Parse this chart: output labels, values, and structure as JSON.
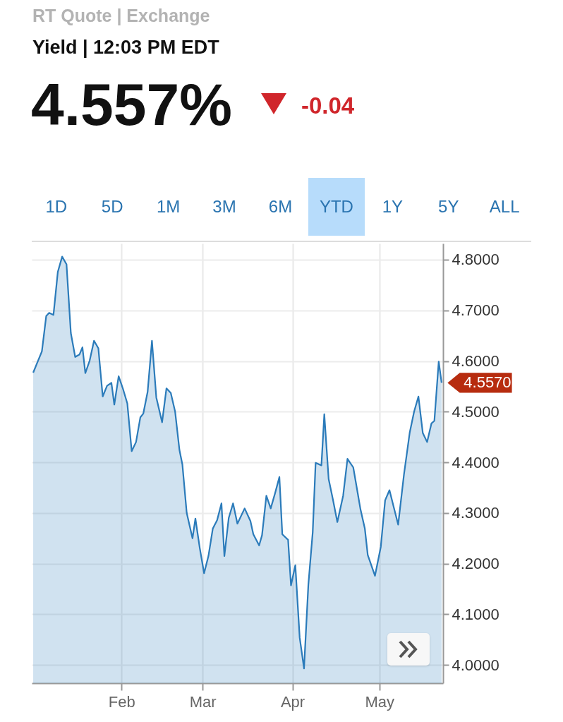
{
  "chart_data": {
    "type": "area",
    "title": "Yield | 12:03 PM EDT",
    "annotations": [
      "RT Quote | Exchange",
      "4.557%",
      "-0.04",
      "1D",
      "5D",
      "1M",
      "3M",
      "6M",
      "YTD",
      "1Y",
      "5Y",
      "ALL",
      {
        "text": "4.5570",
        "x": "--05-22T12:00",
        "y": 4.557
      }
    ],
    "x": [
      "--01-01T12:00",
      "--01-03",
      "--01-04T12:00",
      "--01-06",
      "--01-07",
      "--01-08T12:00",
      "--01-10",
      "--01-11T12:00",
      "--01-13",
      "--01-14T12:00",
      "--01-16",
      "--01-17T12:00",
      "--01-18T12:00",
      "--01-19T12:00",
      "--01-21",
      "--01-22T12:00",
      "--01-24",
      "--01-25T12:00",
      "--01-27",
      "--01-28T12:00",
      "--01-29T12:00",
      "--01-31",
      "--02-01T12:00",
      "--02-03",
      "--02-04T12:00",
      "--02-06",
      "--02-07T12:00",
      "--02-08T12:00",
      "--02-10",
      "--02-11T12:00",
      "--02-13",
      "--02-15",
      "--02-16T12:00",
      "--02-18",
      "--02-19T12:00",
      "--02-21",
      "--02-22",
      "--02-23T12:00",
      "--02-25T12:00",
      "--02-26T12:00",
      "--02-28",
      "--03-01T12:00",
      "--03-03",
      "--03-04T12:00",
      "--03-06",
      "--03-07T12:00",
      "--03-08T12:00",
      "--03-10",
      "--03-11T12:00",
      "--03-13",
      "--03-15T12:00",
      "--03-17T12:00",
      "--03-18T12:00",
      "--03-20T12:00",
      "--03-21T12:00",
      "--03-23",
      "--03-24T12:00",
      "--03-26",
      "--03-27T12:00",
      "--03-28T12:00",
      "--03-30T12:00",
      "--03-31T12:00",
      "--04-02",
      "--04-03T12:00",
      "--04-05",
      "--04-06T12:00",
      "--04-08",
      "--04-09",
      "--04-11",
      "--04-12",
      "--04-13T12:00",
      "--04-15",
      "--04-16T12:00",
      "--04-18T12:00",
      "--04-20",
      "--04-22",
      "--04-24T12:00",
      "--04-26",
      "--04-27",
      "--04-29T12:00",
      "--05-01T12:00",
      "--05-03",
      "--05-04T12:00",
      "--05-06",
      "--05-07T12:00",
      "--05-09T12:00",
      "--05-11T12:00",
      "--05-13",
      "--05-14T12:00",
      "--05-16",
      "--05-17T12:00",
      "--05-19",
      "--05-20",
      "--05-21T12:00",
      "--05-22T12:00"
    ],
    "series": [
      {
        "color": "#2b7bba",
        "values": [
          4.577,
          4.598,
          4.619,
          4.689,
          4.695,
          4.691,
          4.776,
          4.806,
          4.791,
          4.655,
          4.608,
          4.613,
          4.627,
          4.576,
          4.601,
          4.64,
          4.625,
          4.53,
          4.551,
          4.557,
          4.514,
          4.57,
          4.545,
          4.516,
          4.422,
          4.44,
          4.489,
          4.496,
          4.539,
          4.64,
          4.528,
          4.479,
          4.546,
          4.537,
          4.5,
          4.424,
          4.396,
          4.3,
          4.25,
          4.289,
          4.231,
          4.181,
          4.215,
          4.269,
          4.286,
          4.319,
          4.215,
          4.29,
          4.319,
          4.279,
          4.309,
          4.284,
          4.258,
          4.236,
          4.256,
          4.334,
          4.309,
          4.339,
          4.371,
          4.258,
          4.247,
          4.157,
          4.197,
          4.054,
          3.993,
          4.159,
          4.262,
          4.399,
          4.394,
          4.495,
          4.367,
          4.326,
          4.282,
          4.334,
          4.407,
          4.39,
          4.307,
          4.269,
          4.217,
          4.176,
          4.233,
          4.325,
          4.345,
          4.311,
          4.277,
          4.376,
          4.459,
          4.5,
          4.53,
          4.458,
          4.44,
          4.477,
          4.482,
          4.599,
          4.557
        ]
      }
    ],
    "xlim": [
      "--01-01",
      "--05-23"
    ],
    "xticks": [
      {
        "value": "--02-01",
        "label": "Feb"
      },
      {
        "value": "--03-01",
        "label": "Mar"
      },
      {
        "value": "--04-01",
        "label": "Apr"
      },
      {
        "value": "--05-01",
        "label": "May"
      }
    ],
    "ylim": [
      3.964,
      4.832
    ],
    "yticks": [
      {
        "value": 4.0,
        "label": "4.0000"
      },
      {
        "value": 4.1,
        "label": "4.1000"
      },
      {
        "value": 4.2,
        "label": "4.2000"
      },
      {
        "value": 4.3,
        "label": "4.3000"
      },
      {
        "value": 4.4,
        "label": "4.4000"
      },
      {
        "value": 4.5,
        "label": "4.5000"
      },
      {
        "value": 4.6,
        "label": "4.6000"
      },
      {
        "value": 4.7,
        "label": "4.7000"
      },
      {
        "value": 4.8,
        "label": "4.8000"
      }
    ],
    "grid": true,
    "marker": "none",
    "line_style": "solid"
  }
}
